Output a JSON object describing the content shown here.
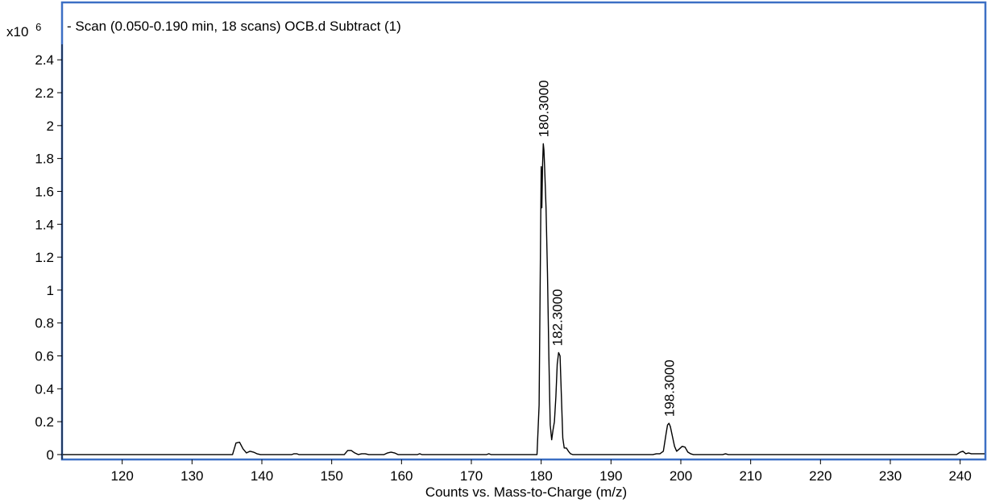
{
  "chart_data": {
    "type": "line",
    "title": "- Scan (0.050-0.190 min, 18 scans) OCB.d  Subtract (1)",
    "xlabel": "Counts vs. Mass-to-Charge (m/z)",
    "ylabel": "",
    "y_multiplier_label": "x10",
    "y_multiplier_exponent": "6",
    "xlim": [
      111.5,
      243.5
    ],
    "ylim": [
      -0.02,
      2.45
    ],
    "x_ticks": [
      120,
      130,
      140,
      150,
      160,
      170,
      180,
      190,
      200,
      210,
      220,
      230,
      240
    ],
    "y_ticks": [
      {
        "value": 0,
        "label": "0"
      },
      {
        "value": 0.2,
        "label": "0.2"
      },
      {
        "value": 0.4,
        "label": "0.4"
      },
      {
        "value": 0.6,
        "label": "0.6"
      },
      {
        "value": 0.8,
        "label": "0.8"
      },
      {
        "value": 1.0,
        "label": "1"
      },
      {
        "value": 1.2,
        "label": "1.2"
      },
      {
        "value": 1.4,
        "label": "1.4"
      },
      {
        "value": 1.6,
        "label": "1.6"
      },
      {
        "value": 1.8,
        "label": "1.8"
      },
      {
        "value": 2.0,
        "label": "2"
      },
      {
        "value": 2.2,
        "label": "2.2"
      },
      {
        "value": 2.4,
        "label": "2.4"
      }
    ],
    "grid": false,
    "line_color": "#000000",
    "frame_color": "#3c6fc4",
    "series": [
      {
        "x": [
          111.5,
          135.8,
          136.3,
          136.8,
          137.3,
          137.8,
          138.3,
          138.8,
          139.3,
          139.8,
          144.3,
          144.6,
          145.0,
          145.3,
          151.8,
          152.3,
          152.8,
          153.3,
          153.8,
          154.3,
          154.8,
          155.3,
          157.5,
          158.0,
          158.5,
          159.0,
          159.5,
          162.3,
          162.6,
          162.9,
          172.2,
          172.5,
          172.8,
          179.4,
          179.7,
          180.0,
          180.1,
          180.2,
          180.3,
          180.4,
          180.5,
          180.7,
          180.9,
          181.1,
          181.3,
          181.5,
          181.7,
          181.9,
          182.1,
          182.3,
          182.5,
          182.7,
          182.9,
          183.1,
          183.3,
          183.6,
          183.9,
          184.2,
          184.5,
          196.0,
          196.5,
          197.0,
          197.5,
          197.9,
          198.1,
          198.3,
          198.5,
          198.8,
          199.1,
          199.4,
          199.8,
          200.2,
          200.6,
          201.0,
          201.4,
          201.8,
          206.0,
          206.4,
          206.8,
          239.5,
          240.0,
          240.4,
          240.8,
          241.2,
          241.6,
          243.5
        ],
        "y": [
          0,
          0,
          0.07,
          0.075,
          0.035,
          0.01,
          0.02,
          0.015,
          0.005,
          0,
          0,
          0.005,
          0.005,
          0,
          0,
          0.025,
          0.025,
          0.01,
          0,
          0.005,
          0.005,
          0,
          0,
          0.01,
          0.015,
          0.01,
          0,
          0,
          0.005,
          0,
          0,
          0.005,
          0,
          0,
          0.3,
          1.75,
          1.5,
          1.76,
          1.89,
          1.85,
          1.74,
          1.5,
          1.1,
          0.6,
          0.18,
          0.09,
          0.15,
          0.2,
          0.35,
          0.55,
          0.62,
          0.6,
          0.35,
          0.1,
          0.04,
          0.04,
          0.02,
          0.005,
          0,
          0,
          0.005,
          0.005,
          0.02,
          0.13,
          0.18,
          0.19,
          0.17,
          0.11,
          0.05,
          0.02,
          0.035,
          0.05,
          0.045,
          0.015,
          0.005,
          0,
          0,
          0.005,
          0,
          0,
          0.015,
          0.02,
          0.005,
          0.01,
          0.005,
          0.005
        ]
      }
    ],
    "peak_labels": [
      {
        "x": 180.3,
        "y": 1.89,
        "label": "180.3000"
      },
      {
        "x": 182.3,
        "y": 0.62,
        "label": "182.3000"
      },
      {
        "x": 198.3,
        "y": 0.19,
        "label": "198.3000"
      }
    ]
  }
}
